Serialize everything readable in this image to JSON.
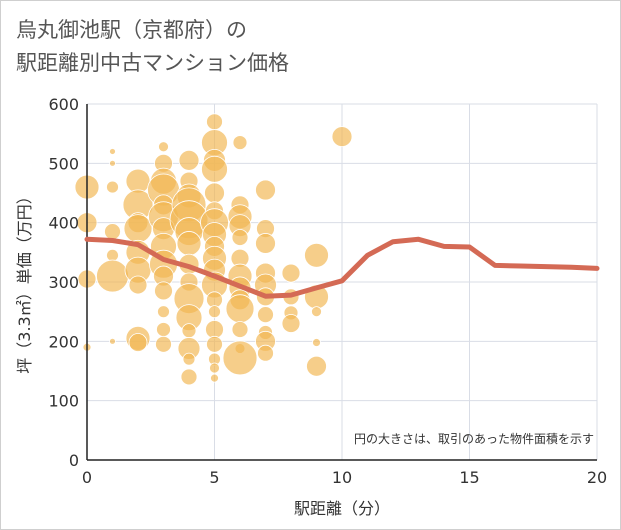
{
  "title": {
    "line1": "烏丸御池駅（京都府）の",
    "line2": "駅距離別中古マンション価格"
  },
  "colors": {
    "bubble": "#f1b753",
    "line": "#d46a55",
    "grid": "#d9dde6",
    "axis": "#222222"
  },
  "chart_data": {
    "type": "scatter",
    "xlabel": "駅距離（分）",
    "ylabel": "坪（3.3㎡）単価（万円）",
    "xlim": [
      0,
      20
    ],
    "ylim": [
      0,
      600
    ],
    "xticks": [
      0,
      5,
      10,
      15,
      20
    ],
    "yticks": [
      0,
      100,
      200,
      300,
      400,
      500,
      600
    ],
    "annotation": "円の大きさは、取引のあった物件面積を示す",
    "average_line": {
      "x": [
        0,
        1,
        2,
        3,
        4,
        5,
        6,
        7,
        8,
        9,
        10,
        11,
        12,
        13,
        14,
        15,
        16,
        17,
        18,
        19,
        20
      ],
      "y": [
        372,
        370,
        363,
        338,
        326,
        310,
        293,
        276,
        278,
        290,
        302,
        345,
        368,
        372,
        360,
        359,
        328,
        327,
        326,
        325,
        323
      ]
    },
    "points": [
      {
        "x": 0,
        "y": 460,
        "r": 12
      },
      {
        "x": 0,
        "y": 400,
        "r": 10
      },
      {
        "x": 0,
        "y": 305,
        "r": 9
      },
      {
        "x": 0,
        "y": 190,
        "r": 4
      },
      {
        "x": 1,
        "y": 520,
        "r": 3
      },
      {
        "x": 1,
        "y": 500,
        "r": 3
      },
      {
        "x": 1,
        "y": 460,
        "r": 6
      },
      {
        "x": 1,
        "y": 385,
        "r": 8
      },
      {
        "x": 1,
        "y": 345,
        "r": 6
      },
      {
        "x": 1,
        "y": 310,
        "r": 16
      },
      {
        "x": 1,
        "y": 200,
        "r": 3
      },
      {
        "x": 2,
        "y": 470,
        "r": 12
      },
      {
        "x": 2,
        "y": 430,
        "r": 15
      },
      {
        "x": 2,
        "y": 400,
        "r": 10
      },
      {
        "x": 2,
        "y": 390,
        "r": 14
      },
      {
        "x": 2,
        "y": 350,
        "r": 12
      },
      {
        "x": 2,
        "y": 320,
        "r": 13
      },
      {
        "x": 2,
        "y": 295,
        "r": 9
      },
      {
        "x": 2,
        "y": 205,
        "r": 12
      },
      {
        "x": 2,
        "y": 198,
        "r": 9
      },
      {
        "x": 3,
        "y": 528,
        "r": 5
      },
      {
        "x": 3,
        "y": 500,
        "r": 9
      },
      {
        "x": 3,
        "y": 470,
        "r": 13
      },
      {
        "x": 3,
        "y": 455,
        "r": 16
      },
      {
        "x": 3,
        "y": 430,
        "r": 10
      },
      {
        "x": 3,
        "y": 410,
        "r": 15
      },
      {
        "x": 3,
        "y": 390,
        "r": 11
      },
      {
        "x": 3,
        "y": 360,
        "r": 13
      },
      {
        "x": 3,
        "y": 330,
        "r": 14
      },
      {
        "x": 3,
        "y": 310,
        "r": 10
      },
      {
        "x": 3,
        "y": 285,
        "r": 9
      },
      {
        "x": 3,
        "y": 250,
        "r": 6
      },
      {
        "x": 3,
        "y": 220,
        "r": 7
      },
      {
        "x": 3,
        "y": 195,
        "r": 8
      },
      {
        "x": 4,
        "y": 505,
        "r": 10
      },
      {
        "x": 4,
        "y": 470,
        "r": 9
      },
      {
        "x": 4,
        "y": 445,
        "r": 12
      },
      {
        "x": 4,
        "y": 430,
        "r": 17
      },
      {
        "x": 4,
        "y": 405,
        "r": 19
      },
      {
        "x": 4,
        "y": 385,
        "r": 14
      },
      {
        "x": 4,
        "y": 365,
        "r": 12
      },
      {
        "x": 4,
        "y": 330,
        "r": 10
      },
      {
        "x": 4,
        "y": 300,
        "r": 9
      },
      {
        "x": 4,
        "y": 272,
        "r": 15
      },
      {
        "x": 4,
        "y": 240,
        "r": 13
      },
      {
        "x": 4,
        "y": 218,
        "r": 7
      },
      {
        "x": 4,
        "y": 188,
        "r": 11
      },
      {
        "x": 4,
        "y": 170,
        "r": 6
      },
      {
        "x": 4,
        "y": 140,
        "r": 8
      },
      {
        "x": 5,
        "y": 570,
        "r": 8
      },
      {
        "x": 5,
        "y": 535,
        "r": 13
      },
      {
        "x": 5,
        "y": 505,
        "r": 11
      },
      {
        "x": 5,
        "y": 490,
        "r": 13
      },
      {
        "x": 5,
        "y": 450,
        "r": 10
      },
      {
        "x": 5,
        "y": 420,
        "r": 9
      },
      {
        "x": 5,
        "y": 400,
        "r": 14
      },
      {
        "x": 5,
        "y": 380,
        "r": 12
      },
      {
        "x": 5,
        "y": 360,
        "r": 10
      },
      {
        "x": 5,
        "y": 340,
        "r": 12
      },
      {
        "x": 5,
        "y": 320,
        "r": 11
      },
      {
        "x": 5,
        "y": 295,
        "r": 13
      },
      {
        "x": 5,
        "y": 270,
        "r": 8
      },
      {
        "x": 5,
        "y": 250,
        "r": 6
      },
      {
        "x": 5,
        "y": 220,
        "r": 9
      },
      {
        "x": 5,
        "y": 195,
        "r": 8
      },
      {
        "x": 5,
        "y": 170,
        "r": 6
      },
      {
        "x": 5,
        "y": 155,
        "r": 5
      },
      {
        "x": 5,
        "y": 138,
        "r": 4
      },
      {
        "x": 6,
        "y": 535,
        "r": 7
      },
      {
        "x": 6,
        "y": 430,
        "r": 9
      },
      {
        "x": 6,
        "y": 410,
        "r": 12
      },
      {
        "x": 6,
        "y": 395,
        "r": 11
      },
      {
        "x": 6,
        "y": 375,
        "r": 8
      },
      {
        "x": 6,
        "y": 340,
        "r": 9
      },
      {
        "x": 6,
        "y": 310,
        "r": 12
      },
      {
        "x": 6,
        "y": 290,
        "r": 11
      },
      {
        "x": 6,
        "y": 270,
        "r": 10
      },
      {
        "x": 6,
        "y": 255,
        "r": 14
      },
      {
        "x": 6,
        "y": 220,
        "r": 8
      },
      {
        "x": 6,
        "y": 188,
        "r": 5
      },
      {
        "x": 6,
        "y": 172,
        "r": 17
      },
      {
        "x": 7,
        "y": 455,
        "r": 10
      },
      {
        "x": 7,
        "y": 390,
        "r": 9
      },
      {
        "x": 7,
        "y": 365,
        "r": 10
      },
      {
        "x": 7,
        "y": 315,
        "r": 10
      },
      {
        "x": 7,
        "y": 295,
        "r": 11
      },
      {
        "x": 7,
        "y": 275,
        "r": 9
      },
      {
        "x": 7,
        "y": 245,
        "r": 8
      },
      {
        "x": 7,
        "y": 215,
        "r": 7
      },
      {
        "x": 7,
        "y": 200,
        "r": 10
      },
      {
        "x": 7,
        "y": 180,
        "r": 8
      },
      {
        "x": 8,
        "y": 315,
        "r": 9
      },
      {
        "x": 8,
        "y": 275,
        "r": 8
      },
      {
        "x": 8,
        "y": 248,
        "r": 7
      },
      {
        "x": 8,
        "y": 230,
        "r": 9
      },
      {
        "x": 9,
        "y": 345,
        "r": 12
      },
      {
        "x": 9,
        "y": 275,
        "r": 12
      },
      {
        "x": 9,
        "y": 250,
        "r": 5
      },
      {
        "x": 9,
        "y": 198,
        "r": 4
      },
      {
        "x": 9,
        "y": 158,
        "r": 10
      },
      {
        "x": 10,
        "y": 545,
        "r": 10
      }
    ]
  }
}
